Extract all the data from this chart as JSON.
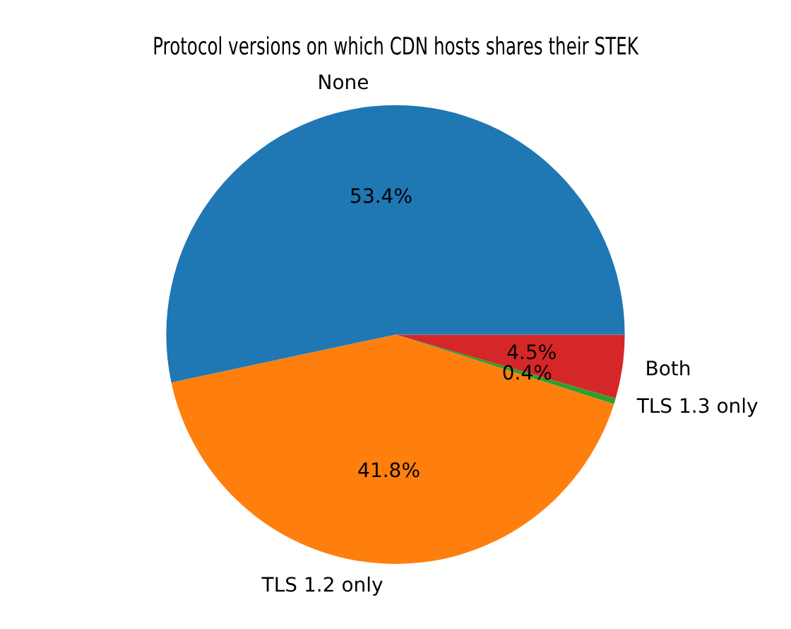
{
  "chart_data": {
    "type": "pie",
    "title": "Protocol versions on which CDN hosts shares their STEK",
    "categories": [
      "None",
      "TLS 1.2 only",
      "TLS 1.3 only",
      "Both"
    ],
    "values": [
      53.4,
      41.8,
      0.4,
      4.5
    ],
    "colors": [
      "#1f77b4",
      "#ff7f0e",
      "#2ca02c",
      "#d62728"
    ],
    "value_labels": [
      "53.4%",
      "41.8%",
      "0.4%",
      "4.5%"
    ],
    "legend": false
  }
}
